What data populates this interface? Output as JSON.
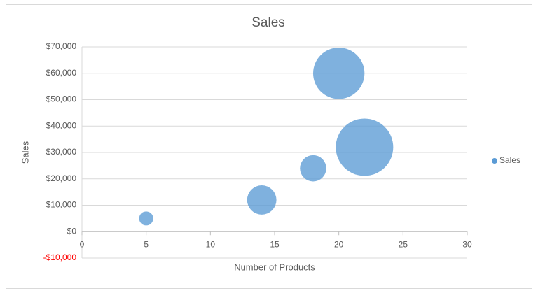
{
  "chart_data": {
    "type": "bubble",
    "title": "Sales",
    "x_label": "Number of Products",
    "y_label": "Sales",
    "series": [
      {
        "name": "Sales",
        "color": "#5b9bd5",
        "x": [
          5,
          14,
          18,
          20,
          22
        ],
        "values": [
          5000,
          12000,
          24000,
          60000,
          32000
        ],
        "sizes": [
          6,
          26,
          21,
          80,
          100
        ]
      }
    ],
    "xlim": [
      0,
      30
    ],
    "xticks": [
      0,
      5,
      10,
      15,
      20,
      25,
      30
    ],
    "ylim": [
      -10000,
      70000
    ],
    "yticks": [
      {
        "value": -10000,
        "label": "-$10,000"
      },
      {
        "value": 0,
        "label": "$0"
      },
      {
        "value": 10000,
        "label": "$10,000"
      },
      {
        "value": 20000,
        "label": "$20,000"
      },
      {
        "value": 30000,
        "label": "$30,000"
      },
      {
        "value": 40000,
        "label": "$40,000"
      },
      {
        "value": 50000,
        "label": "$50,000"
      },
      {
        "value": 60000,
        "label": "$60,000"
      },
      {
        "value": 70000,
        "label": "$70,000"
      }
    ],
    "negative_tick_color": "#ff0000",
    "grid": true,
    "legend": "right"
  }
}
